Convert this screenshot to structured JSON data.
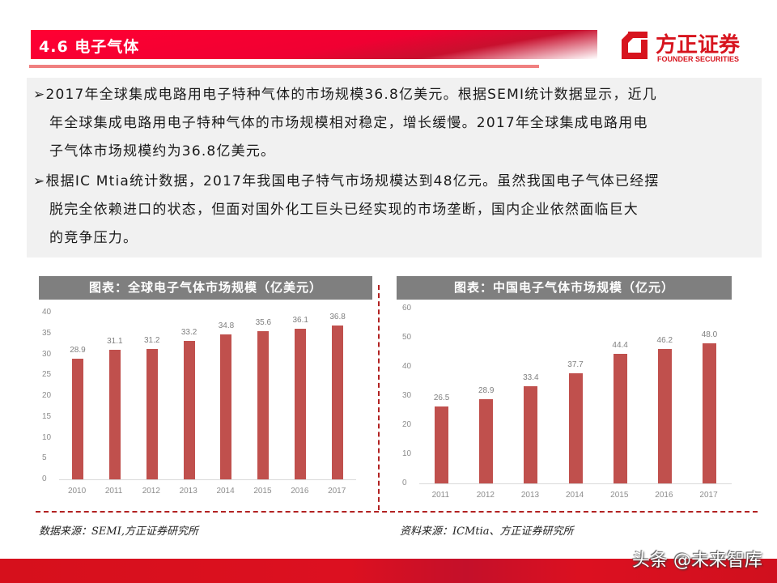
{
  "header": {
    "section_title": "4.6 电子气体"
  },
  "logo": {
    "name_cn": "方正证券",
    "name_en": "FOUNDER SECURITIES",
    "brand_color": "#d7141e"
  },
  "summary": {
    "bullets": [
      {
        "marker": "➢",
        "lines": [
          "2017年全球集成电路用电子特种气体的市场规模36.8亿美元。根据SEMI统计数据显示，近几",
          "年全球集成电路用电子特种气体的市场规模相对稳定，增长缓慢。2017年全球集成电路用电",
          "子气体市场规模约为36.8亿美元。"
        ]
      },
      {
        "marker": "➢",
        "lines": [
          "根据IC Mtia统计数据，2017年我国电子特气市场规模达到48亿元。虽然我国电子气体已经摆",
          "脱完全依赖进口的状态，但面对国外化工巨头已经实现的市场垄断，国内企业依然面临巨大",
          "的竞争压力。"
        ]
      }
    ]
  },
  "chart_data": [
    {
      "type": "bar",
      "title": "图表：全球电子气体市场规模（亿美元）",
      "categories": [
        "2010",
        "2011",
        "2012",
        "2013",
        "2014",
        "2015",
        "2016",
        "2017"
      ],
      "values": [
        28.9,
        31.1,
        31.2,
        33.2,
        34.8,
        35.6,
        36.1,
        36.8
      ],
      "value_labels": [
        "28.9",
        "31.1",
        "31.2",
        "33.2",
        "34.8",
        "35.6",
        "36.1",
        "36.8"
      ],
      "xlabel": "",
      "ylabel": "",
      "ylim": [
        0,
        40
      ],
      "yticks": [
        "0",
        "5",
        "10",
        "15",
        "20",
        "25",
        "30",
        "35",
        "40"
      ],
      "grid": false,
      "legend": "none",
      "bar_color": "#c0504d"
    },
    {
      "type": "bar",
      "title": "图表：中国电子气体市场规模（亿元）",
      "categories": [
        "2011",
        "2012",
        "2013",
        "2014",
        "2015",
        "2016",
        "2017"
      ],
      "values": [
        26.5,
        28.9,
        33.4,
        37.7,
        44.4,
        46.2,
        48.0
      ],
      "value_labels": [
        "26.5",
        "28.9",
        "33.4",
        "37.7",
        "44.4",
        "46.2",
        "48.0"
      ],
      "xlabel": "",
      "ylabel": "",
      "ylim": [
        0,
        60
      ],
      "yticks": [
        "0",
        "10",
        "20",
        "30",
        "40",
        "50",
        "60"
      ],
      "grid": false,
      "legend": "none",
      "bar_color": "#c0504d"
    }
  ],
  "sources": {
    "left": "数据来源：SEMI,方正证券研究所",
    "right": "资料来源：ICMtia、方正证券研究所"
  },
  "watermark": "头条 @未来智库"
}
